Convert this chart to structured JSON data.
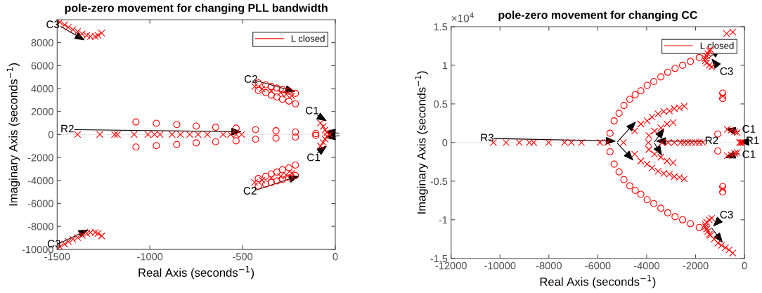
{
  "chart_data": [
    {
      "type": "scatter",
      "title": "pole-zero movement for changing PLL bandwidth",
      "xlabel": "Real Axis (seconds$^{−1}$)",
      "ylabel": "Imaginary Axis (seconds$^{−1}$)",
      "xlim": [
        -1500,
        0
      ],
      "ylim": [
        -10000,
        10000
      ],
      "xticks": [
        -1500,
        -1000,
        -500,
        0
      ],
      "yticks": [
        -10000,
        -8000,
        -6000,
        -4000,
        -2000,
        0,
        2000,
        4000,
        6000,
        8000
      ],
      "legend": "top right",
      "ref_lines": [
        {
          "axis": "y",
          "value": 0,
          "color": "#c8c8c8",
          "line_style": "dotted"
        }
      ],
      "series": [
        {
          "name": "L closed",
          "marker": "cross",
          "color": "#ff0000",
          "x": [
            -1390,
            -1270,
            -1190,
            -1175,
            -1085,
            -1010,
            -975,
            -945,
            -880,
            -835,
            -785,
            -740,
            -690,
            -605,
            -565,
            -535,
            -505,
            -1485,
            -1460,
            -1440,
            -1415,
            -1390,
            -1365,
            -1340,
            -1320,
            -1295,
            -1280,
            -1260,
            -1485,
            -1460,
            -1440,
            -1415,
            -1390,
            -1365,
            -1340,
            -1320,
            -1295,
            -1280,
            -1260,
            -435,
            -395,
            -345,
            -295,
            -265,
            -235,
            -435,
            -395,
            -345,
            -295,
            -265,
            -235,
            -80,
            -65,
            -55,
            -45,
            -30,
            -80,
            -65,
            -55,
            -45
          ],
          "values": [
            0,
            0,
            0,
            0,
            0,
            0,
            0,
            0,
            0,
            0,
            0,
            0,
            0,
            0,
            0,
            0,
            0,
            9780,
            9540,
            9330,
            9130,
            8970,
            8770,
            8630,
            8530,
            8530,
            8630,
            8830,
            -9780,
            -9540,
            -9330,
            -9130,
            -8970,
            -8770,
            -8630,
            -8530,
            -8530,
            -8630,
            -8830,
            4180,
            3980,
            3780,
            3640,
            3510,
            3370,
            -4180,
            -3980,
            -3780,
            -3640,
            -3510,
            -3370,
            1000,
            700,
            400,
            150,
            0,
            -1000,
            -700,
            -400,
            -150
          ]
        },
        {
          "marker": "circle",
          "color": "#ff0000",
          "x": [
            -1075,
            -965,
            -855,
            -750,
            -645,
            -535,
            -430,
            -320,
            -215,
            -105,
            -1075,
            -965,
            -855,
            -750,
            -645,
            -535,
            -430,
            -320,
            -215,
            -105,
            -415,
            -375,
            -345,
            -315,
            -285,
            -250,
            -215,
            -415,
            -375,
            -345,
            -315,
            -285,
            -250,
            -215,
            -415,
            -375,
            -345,
            -315,
            -285,
            -250,
            -215,
            -415,
            -375,
            -345,
            -315,
            -285,
            -250,
            -215
          ],
          "values": [
            1090,
            970,
            870,
            730,
            630,
            550,
            420,
            320,
            220,
            80,
            -1090,
            -970,
            -870,
            -730,
            -630,
            -550,
            -420,
            -320,
            -220,
            -80,
            4490,
            4320,
            4180,
            4040,
            3920,
            3780,
            3580,
            3840,
            3640,
            3430,
            3270,
            3070,
            2910,
            2670,
            -4490,
            -4320,
            -4180,
            -4040,
            -3920,
            -3780,
            -3580,
            -3840,
            -3640,
            -3430,
            -3270,
            -3070,
            -2910,
            -2670
          ]
        }
      ],
      "annotations": [
        {
          "text": "C3",
          "x": -1350,
          "y": 8190
        },
        {
          "text": "C2",
          "x": -215,
          "y": 3720
        },
        {
          "text": "C1",
          "x": -45,
          "y": 1160
        },
        {
          "text": "R2",
          "x": -505,
          "y": 240
        },
        {
          "text": "C1",
          "x": -45,
          "y": -980
        },
        {
          "text": "C2",
          "x": -195,
          "y": -3600
        },
        {
          "text": "C3",
          "x": -1330,
          "y": -8270
        }
      ]
    },
    {
      "type": "scatter",
      "title": "pole-zero movement for changing CC",
      "xlabel": "Real Axis (seconds$^{−1}$)",
      "ylabel": "Imaginary Axis (seconds$^{−1}$)",
      "xlim": [
        -12000,
        0
      ],
      "ylim": [
        -1.5,
        1.5
      ],
      "xticks": [
        -12000,
        -10000,
        -8000,
        -6000,
        -4000,
        -2000,
        0
      ],
      "yticks": [
        -1.5,
        -1,
        -0.5,
        0,
        0.5,
        1,
        1.5
      ],
      "legend": "top right",
      "ref_lines": [
        {
          "axis": "y",
          "value": 0,
          "color": "#c8c8c8",
          "line_style": "dotted"
        }
      ],
      "series": [
        {
          "name": "L closed",
          "marker": "cross",
          "color": "#ff0000",
          "x": [
            -10270,
            -9750,
            -9210,
            -8800,
            -8620,
            -8010,
            -7360,
            -7080,
            -6670,
            -5910,
            -5610,
            -4950,
            -3930,
            -3370,
            -3120,
            -2870,
            -2610,
            -2460,
            -2310,
            -2160,
            -2000,
            -1850,
            -1700,
            -200,
            -150,
            -100,
            -50,
            -4490,
            -4240,
            -3980,
            -3780,
            -3530,
            -3300,
            -3070,
            -2870,
            -2660,
            -2460,
            -4490,
            -4240,
            -3980,
            -3780,
            -3530,
            -3300,
            -3070,
            -2870,
            -2660,
            -2460,
            -3910,
            -3680,
            -3420,
            -3170,
            -2920,
            -3910,
            -3680,
            -3420,
            -3170,
            -2920,
            -1340,
            -1440,
            -1550,
            -1600,
            -1600,
            -1550,
            -1500,
            -1440,
            -1390,
            -1240,
            -1090,
            -940,
            -780,
            -730,
            -480,
            -1340,
            -1440,
            -1550,
            -1600,
            -1600,
            -1550,
            -1500,
            -1440,
            -1390,
            -1240,
            -1090,
            -940,
            -780,
            -630,
            -480,
            -890,
            -890,
            -700,
            -550,
            -400,
            -300,
            -700,
            -550,
            -400,
            -300
          ],
          "values": [
            0,
            0,
            0,
            0,
            0,
            0,
            0,
            0,
            0,
            0,
            0,
            0,
            0,
            0,
            0,
            0,
            0,
            0,
            0,
            0,
            0,
            0,
            0,
            0,
            0,
            0,
            0,
            0.15,
            0.24,
            0.28,
            0.33,
            0.37,
            0.4,
            0.41,
            0.44,
            0.45,
            0.47,
            -0.15,
            -0.24,
            -0.28,
            -0.33,
            -0.37,
            -0.4,
            -0.41,
            -0.44,
            -0.45,
            -0.47,
            0.09,
            0.15,
            0.19,
            0.24,
            0.26,
            -0.09,
            -0.15,
            -0.19,
            -0.24,
            -0.26,
            0.98,
            1,
            1.03,
            1.06,
            1.09,
            1.12,
            1.15,
            1.19,
            1.2,
            null,
            null,
            null,
            null,
            1.41,
            1.43,
            -0.98,
            -1,
            -1.03,
            -1.06,
            -1.09,
            -1.12,
            -1.15,
            -1.19,
            -1.2,
            -1.25,
            -1.3,
            -1.33,
            -1.36,
            -1.39,
            -1.43,
            0.6,
            -0.6,
            0.17,
            0.16,
            0.14,
            0.13,
            -0.17,
            -0.16,
            -0.14,
            -0.13
          ]
        },
        {
          "marker": "circle",
          "color": "#ff0000",
          "x": [
            -5500,
            -5330,
            -5130,
            -4930,
            -4690,
            -4470,
            -4240,
            -3980,
            -3710,
            -3420,
            -3140,
            -2840,
            -2530,
            -2210,
            -1850,
            -5500,
            -5330,
            -5130,
            -4930,
            -4690,
            -4470,
            -4240,
            -3980,
            -3710,
            -3420,
            -3140,
            -2840,
            -2530,
            -2210,
            -1850,
            -1090,
            -1090,
            -890,
            -890,
            -890,
            -890
          ],
          "values": [
            0.12,
            0.28,
            0.38,
            0.48,
            0.56,
            0.62,
            0.67,
            0.74,
            0.79,
            0.85,
            0.91,
            0.96,
            1,
            1.05,
            1.1,
            -0.12,
            -0.28,
            -0.38,
            -0.48,
            -0.56,
            -0.62,
            -0.67,
            -0.74,
            -0.79,
            -0.85,
            -0.91,
            -0.96,
            -1,
            -1.05,
            -1.1,
            0.11,
            -0.11,
            0.64,
            0.57,
            -0.64,
            -0.57
          ]
        }
      ],
      "annotations": [
        "×10$^{4}$",
        {
          "text": "R3",
          "x": -5250,
          "y": 0.02
        },
        {
          "text": "R2",
          "x": -3630,
          "y": 0.02
        },
        {
          "text": "C1",
          "x": -780,
          "y": 0.18
        },
        {
          "text": "R1",
          "x": -230,
          "y": 0.01
        },
        {
          "text": "C1",
          "x": -780,
          "y": -0.2
        },
        {
          "text": "C3",
          "x": -1350,
          "y": 1.09
        },
        {
          "text": "C3",
          "x": -1290,
          "y": -1.09
        }
      ]
    }
  ]
}
